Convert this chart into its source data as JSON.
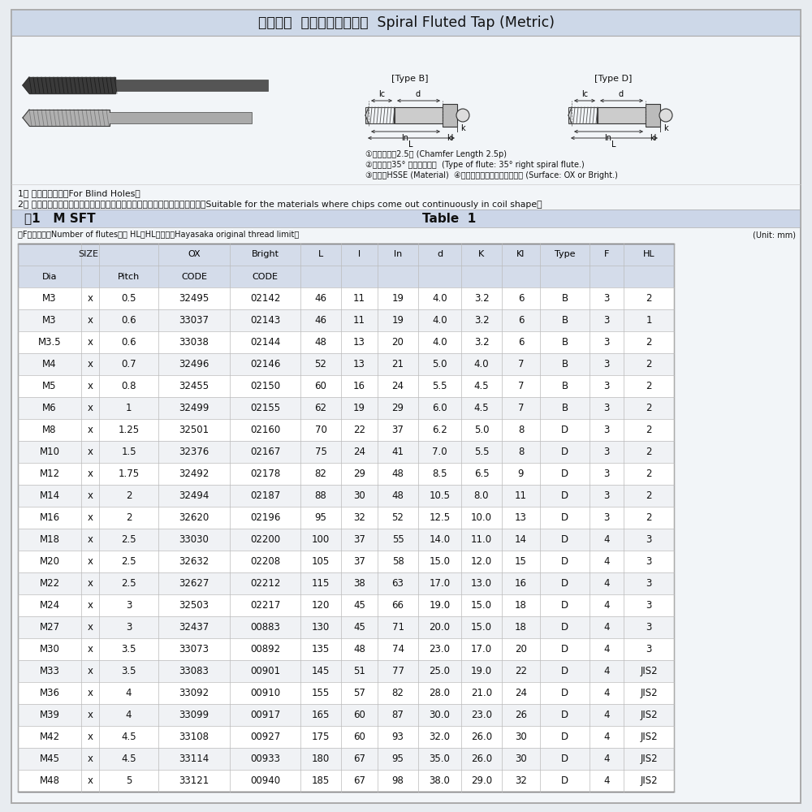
{
  "title": "ミリねじ  スパイラルタップ  Spiral Fluted Tap (Metric)",
  "note1": "1． 止まり穴用。（For Blind Holes）",
  "note2": "2． 切りくずが、コイルのようにカールして排出される被削材に適します。（Suitable for the materials where chips come out continuously in coil shape）",
  "table_label": "表1   M SFT",
  "table_label2": "Table  1",
  "footnote": "＊F：溝数。（Number of flutes）／ HL：HL精度。（Hayasaka original thread limit）",
  "unit": "(Unit: mm)",
  "spec_note1": "①食付長さ：2.5山 (Chamfer Length 2.5p)",
  "spec_note2": "②溝形犴：35° 右スパイラル  (Type of flute: 35° right spiral flute.)",
  "spec_note3": "③材質：HSSE (Material)  ④表面処理：ホモまたは無処理 (Surface: OX or Bright.)",
  "type_b_label": "[Type B]",
  "type_d_label": "[Type D]",
  "rows": [
    [
      "M3",
      "x",
      "0.5",
      "32495",
      "02142",
      "46",
      "11",
      "19",
      "4.0",
      "3.2",
      "6",
      "B",
      "3",
      "2"
    ],
    [
      "M3",
      "x",
      "0.6",
      "33037",
      "02143",
      "46",
      "11",
      "19",
      "4.0",
      "3.2",
      "6",
      "B",
      "3",
      "1"
    ],
    [
      "M3.5",
      "x",
      "0.6",
      "33038",
      "02144",
      "48",
      "13",
      "20",
      "4.0",
      "3.2",
      "6",
      "B",
      "3",
      "2"
    ],
    [
      "M4",
      "x",
      "0.7",
      "32496",
      "02146",
      "52",
      "13",
      "21",
      "5.0",
      "4.0",
      "7",
      "B",
      "3",
      "2"
    ],
    [
      "M5",
      "x",
      "0.8",
      "32455",
      "02150",
      "60",
      "16",
      "24",
      "5.5",
      "4.5",
      "7",
      "B",
      "3",
      "2"
    ],
    [
      "M6",
      "x",
      "1",
      "32499",
      "02155",
      "62",
      "19",
      "29",
      "6.0",
      "4.5",
      "7",
      "B",
      "3",
      "2"
    ],
    [
      "M8",
      "x",
      "1.25",
      "32501",
      "02160",
      "70",
      "22",
      "37",
      "6.2",
      "5.0",
      "8",
      "D",
      "3",
      "2"
    ],
    [
      "M10",
      "x",
      "1.5",
      "32376",
      "02167",
      "75",
      "24",
      "41",
      "7.0",
      "5.5",
      "8",
      "D",
      "3",
      "2"
    ],
    [
      "M12",
      "x",
      "1.75",
      "32492",
      "02178",
      "82",
      "29",
      "48",
      "8.5",
      "6.5",
      "9",
      "D",
      "3",
      "2"
    ],
    [
      "M14",
      "x",
      "2",
      "32494",
      "02187",
      "88",
      "30",
      "48",
      "10.5",
      "8.0",
      "11",
      "D",
      "3",
      "2"
    ],
    [
      "M16",
      "x",
      "2",
      "32620",
      "02196",
      "95",
      "32",
      "52",
      "12.5",
      "10.0",
      "13",
      "D",
      "3",
      "2"
    ],
    [
      "M18",
      "x",
      "2.5",
      "33030",
      "02200",
      "100",
      "37",
      "55",
      "14.0",
      "11.0",
      "14",
      "D",
      "4",
      "3"
    ],
    [
      "M20",
      "x",
      "2.5",
      "32632",
      "02208",
      "105",
      "37",
      "58",
      "15.0",
      "12.0",
      "15",
      "D",
      "4",
      "3"
    ],
    [
      "M22",
      "x",
      "2.5",
      "32627",
      "02212",
      "115",
      "38",
      "63",
      "17.0",
      "13.0",
      "16",
      "D",
      "4",
      "3"
    ],
    [
      "M24",
      "x",
      "3",
      "32503",
      "02217",
      "120",
      "45",
      "66",
      "19.0",
      "15.0",
      "18",
      "D",
      "4",
      "3"
    ],
    [
      "M27",
      "x",
      "3",
      "32437",
      "00883",
      "130",
      "45",
      "71",
      "20.0",
      "15.0",
      "18",
      "D",
      "4",
      "3"
    ],
    [
      "M30",
      "x",
      "3.5",
      "33073",
      "00892",
      "135",
      "48",
      "74",
      "23.0",
      "17.0",
      "20",
      "D",
      "4",
      "3"
    ],
    [
      "M33",
      "x",
      "3.5",
      "33083",
      "00901",
      "145",
      "51",
      "77",
      "25.0",
      "19.0",
      "22",
      "D",
      "4",
      "JIS2"
    ],
    [
      "M36",
      "x",
      "4",
      "33092",
      "00910",
      "155",
      "57",
      "82",
      "28.0",
      "21.0",
      "24",
      "D",
      "4",
      "JIS2"
    ],
    [
      "M39",
      "x",
      "4",
      "33099",
      "00917",
      "165",
      "60",
      "87",
      "30.0",
      "23.0",
      "26",
      "D",
      "4",
      "JIS2"
    ],
    [
      "M42",
      "x",
      "4.5",
      "33108",
      "00927",
      "175",
      "60",
      "93",
      "32.0",
      "26.0",
      "30",
      "D",
      "4",
      "JIS2"
    ],
    [
      "M45",
      "x",
      "4.5",
      "33114",
      "00933",
      "180",
      "67",
      "95",
      "35.0",
      "26.0",
      "30",
      "D",
      "4",
      "JIS2"
    ],
    [
      "M48",
      "x",
      "5",
      "33121",
      "00940",
      "185",
      "67",
      "98",
      "38.0",
      "29.0",
      "32",
      "D",
      "4",
      "JIS2"
    ]
  ],
  "bg_color": "#e8ecf0",
  "panel_bg": "#f2f5f8",
  "title_bg": "#cdd8e8",
  "table_section_bg": "#ccd6e8",
  "header_bg": "#d4dcea",
  "border_color": "#999999",
  "text_color": "#111111"
}
